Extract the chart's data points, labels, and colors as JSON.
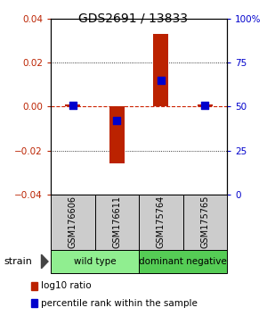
{
  "title": "GDS2691 / 13833",
  "samples": [
    "GSM176606",
    "GSM176611",
    "GSM175764",
    "GSM175765"
  ],
  "log10_ratio": [
    0.001,
    -0.026,
    0.033,
    0.001
  ],
  "percentile_rank": [
    50.5,
    42.0,
    65.0,
    51.0
  ],
  "groups": [
    {
      "label": "wild type",
      "start": 0,
      "end": 2,
      "color": "#90ee90"
    },
    {
      "label": "dominant negative",
      "start": 2,
      "end": 4,
      "color": "#55cc55"
    }
  ],
  "bar_color": "#bb2200",
  "square_color": "#0000cc",
  "ylim_left": [
    -0.04,
    0.04
  ],
  "ylim_right": [
    0,
    100
  ],
  "yticks_left": [
    -0.04,
    -0.02,
    0.0,
    0.02,
    0.04
  ],
  "yticks_right": [
    0,
    25,
    50,
    75,
    100
  ],
  "ytick_labels_right": [
    "0",
    "25",
    "50",
    "75",
    "100%"
  ],
  "hline_color": "#cc2200",
  "grid_color": "#000000",
  "bar_width": 0.35,
  "square_size": 30,
  "legend_items": [
    {
      "color": "#bb2200",
      "label": "log10 ratio"
    },
    {
      "color": "#0000cc",
      "label": "percentile rank within the sample"
    }
  ],
  "strain_label": "strain",
  "sample_box_color": "#cccccc",
  "fig_bg": "#ffffff"
}
